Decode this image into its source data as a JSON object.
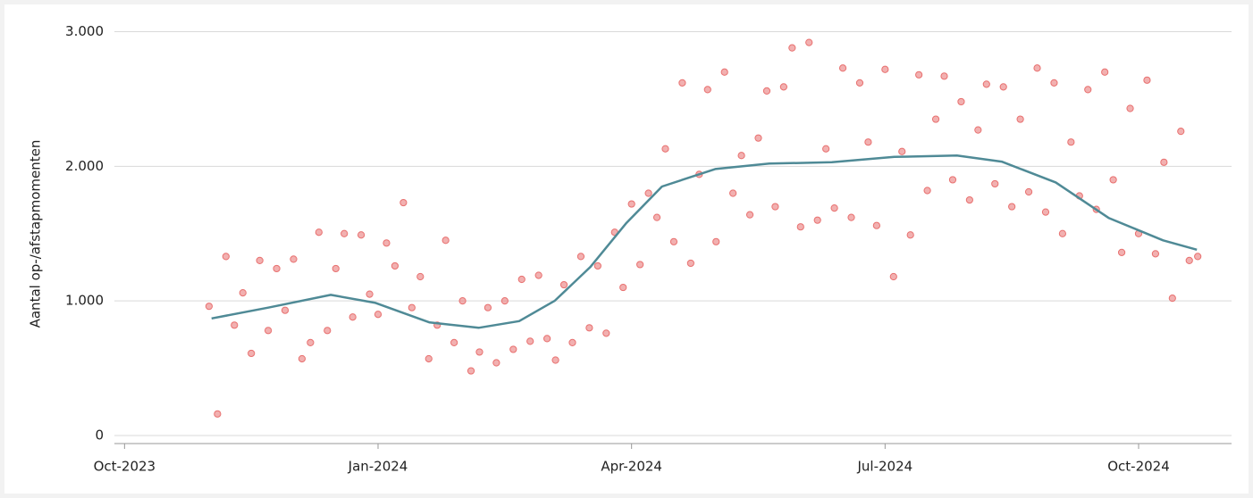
{
  "chart_data": {
    "type": "scatter",
    "y_label": "Aantal op-/afstapmomenten",
    "xlim": [
      -0.12,
      13.1
    ],
    "xticks": [
      {
        "value": 0,
        "label": "Oct-2023"
      },
      {
        "value": 3,
        "label": "Jan-2024"
      },
      {
        "value": 6,
        "label": "Apr-2024"
      },
      {
        "value": 9,
        "label": "Jul-2024"
      },
      {
        "value": 12,
        "label": "Oct-2024"
      }
    ],
    "ylim": [
      -60,
      3050
    ],
    "yticks": [
      0,
      {
        "value": 1000,
        "label": "1.000"
      },
      {
        "value": 2000,
        "label": "2.000"
      },
      {
        "value": 3000,
        "label": "3.000"
      }
    ],
    "grid": true,
    "series": [
      {
        "type": "scatter",
        "color": "#e8706f",
        "x": [
          1.0,
          1.1,
          1.2,
          1.3,
          1.4,
          1.5,
          1.6,
          1.7,
          1.8,
          1.9,
          2.0,
          2.1,
          2.2,
          2.3,
          2.4,
          2.5,
          2.6,
          2.7,
          2.8,
          2.9,
          3.0,
          3.1,
          3.2,
          3.3,
          3.4,
          3.5,
          3.6,
          3.7,
          3.8,
          3.9,
          4.0,
          4.1,
          4.2,
          4.3,
          4.4,
          4.5,
          4.6,
          4.7,
          4.8,
          4.9,
          5.0,
          5.1,
          5.2,
          5.3,
          5.4,
          5.5,
          5.6,
          5.7,
          5.8,
          5.9,
          6.0,
          6.1,
          6.2,
          6.3,
          6.4,
          6.5,
          6.6,
          6.7,
          6.8,
          6.9,
          7.0,
          7.1,
          7.2,
          7.3,
          7.4,
          7.5,
          7.6,
          7.7,
          7.8,
          7.9,
          8.0,
          8.1,
          8.2,
          8.3,
          8.4,
          8.5,
          8.6,
          8.7,
          8.8,
          8.9,
          9.0,
          9.1,
          9.2,
          9.3,
          9.4,
          9.5,
          9.6,
          9.7,
          9.8,
          9.9,
          10.0,
          10.1,
          10.2,
          10.3,
          10.4,
          10.5,
          10.6,
          10.7,
          10.8,
          10.9,
          11.0,
          11.1,
          11.2,
          11.3,
          11.4,
          11.5,
          11.6,
          11.7,
          11.8,
          11.9,
          12.0,
          12.1,
          12.2,
          12.3,
          12.4,
          12.5,
          12.6,
          12.7
        ],
        "values": [
          960,
          160,
          1330,
          820,
          1060,
          610,
          1300,
          780,
          1240,
          930,
          1310,
          570,
          690,
          1510,
          780,
          1240,
          1500,
          880,
          1490,
          1050,
          900,
          1430,
          1260,
          1730,
          950,
          1180,
          570,
          820,
          1450,
          690,
          1000,
          480,
          620,
          950,
          540,
          1000,
          640,
          1160,
          700,
          1190,
          720,
          560,
          1120,
          690,
          1330,
          800,
          1260,
          760,
          1510,
          1100,
          1720,
          1270,
          1800,
          1620,
          2130,
          1440,
          2620,
          1280,
          1940,
          2570,
          1440,
          2700,
          1800,
          2080,
          1640,
          2210,
          2560,
          1700,
          2590,
          2880,
          1550,
          2920,
          1600,
          2130,
          1690,
          2730,
          1620,
          2620,
          2180,
          1560,
          2720,
          1180,
          2110,
          1490,
          2680,
          1820,
          2350,
          2670,
          1900,
          2480,
          1750,
          2270,
          2610,
          1870,
          2590,
          1700,
          2350,
          1810,
          2730,
          1660,
          2620,
          1500,
          2180,
          1780,
          2570,
          1680,
          2700,
          1900,
          1360,
          2430,
          1500,
          2640,
          1350,
          2030,
          1020,
          2260,
          1300,
          1330
        ]
      },
      {
        "type": "line",
        "color": "#4f8a96",
        "x": [
          1.03,
          1.7,
          2.44,
          2.97,
          3.61,
          4.19,
          4.67,
          5.09,
          5.51,
          5.94,
          6.36,
          6.99,
          7.63,
          8.37,
          9.11,
          9.85,
          10.38,
          11.02,
          11.65,
          12.29,
          12.69
        ],
        "values": [
          870,
          950,
          1045,
          985,
          840,
          800,
          850,
          1000,
          1250,
          1580,
          1850,
          1980,
          2020,
          2030,
          2070,
          2080,
          2035,
          1880,
          1615,
          1450,
          1380
        ]
      }
    ]
  }
}
